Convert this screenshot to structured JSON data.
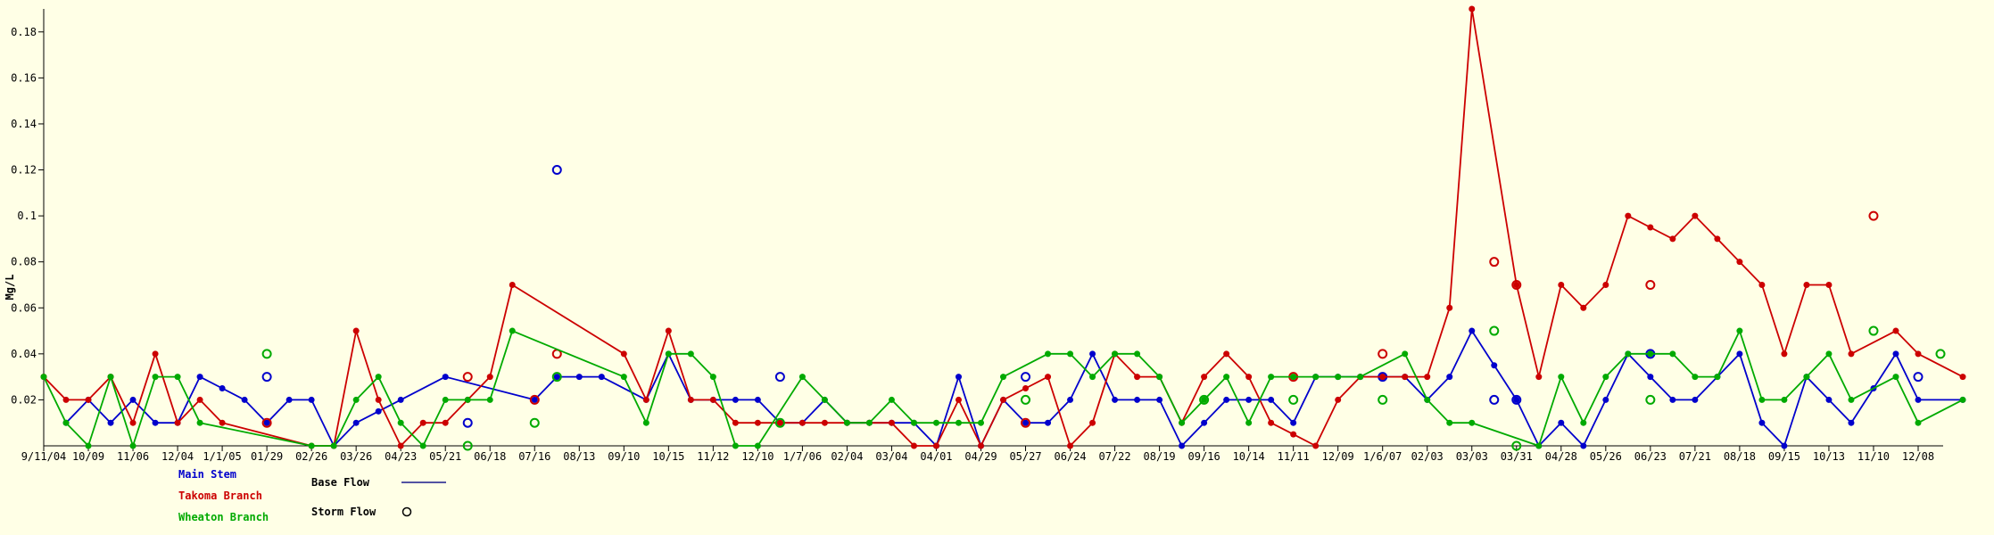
{
  "chart_data": {
    "type": "line",
    "ylabel": "Mg/L",
    "ylim": [
      0,
      0.19
    ],
    "yticks": [
      "0.02",
      "0.04",
      "0.06",
      "0.08",
      "0.1",
      "0.12",
      "0.14",
      "0.16",
      "0.18"
    ],
    "ytick_values": [
      0.02,
      0.04,
      0.06,
      0.08,
      0.1,
      0.12,
      0.14,
      0.16,
      0.18
    ],
    "xlim": [
      0,
      85
    ],
    "xtick_labels": [
      "9/11/04",
      "10/09",
      "11/06",
      "12/04",
      "1/1/05",
      "01/29",
      "02/26",
      "03/26",
      "04/23",
      "05/21",
      "06/18",
      "07/16",
      "08/13",
      "09/10",
      "10/15",
      "11/12",
      "12/10",
      "1/7/06",
      "02/04",
      "03/04",
      "04/01",
      "04/29",
      "05/27",
      "06/24",
      "07/22",
      "08/19",
      "09/16",
      "10/14",
      "11/11",
      "12/09",
      "1/6/07",
      "02/03",
      "03/03",
      "03/31",
      "04/28",
      "05/26",
      "06/23",
      "07/21",
      "08/18",
      "09/15",
      "10/13",
      "11/10",
      "12/08"
    ],
    "series": [
      {
        "name": "Main Stem",
        "color": "#0000cc",
        "base": [
          [
            1,
            0.01
          ],
          [
            2,
            0.02
          ],
          [
            3,
            0.01
          ],
          [
            4,
            0.02
          ],
          [
            5,
            0.01
          ],
          [
            6,
            0.01
          ],
          [
            7,
            0.03
          ],
          [
            8,
            0.025
          ],
          [
            9,
            0.02
          ],
          [
            10,
            0.01
          ],
          [
            11,
            0.02
          ],
          [
            12,
            0.02
          ],
          [
            13,
            0
          ],
          [
            14,
            0.01
          ],
          [
            15,
            0.015
          ],
          [
            16,
            0.02
          ],
          [
            18,
            0.03
          ],
          [
            22,
            0.02
          ],
          [
            23,
            0.03
          ],
          [
            24,
            0.03
          ],
          [
            25,
            0.03
          ],
          [
            27,
            0.02
          ],
          [
            28,
            0.04
          ],
          [
            29,
            0.02
          ],
          [
            30,
            0.02
          ],
          [
            31,
            0.02
          ],
          [
            32,
            0.02
          ],
          [
            33,
            0.01
          ],
          [
            34,
            0.01
          ],
          [
            35,
            0.02
          ],
          [
            36,
            0.01
          ],
          [
            37,
            0.01
          ],
          [
            38,
            0.01
          ],
          [
            39,
            0.01
          ],
          [
            40,
            0
          ],
          [
            41,
            0.03
          ],
          [
            42,
            0
          ],
          [
            43,
            0.02
          ],
          [
            44,
            0.01
          ],
          [
            45,
            0.01
          ],
          [
            46,
            0.02
          ],
          [
            47,
            0.04
          ],
          [
            48,
            0.02
          ],
          [
            49,
            0.02
          ],
          [
            50,
            0.02
          ],
          [
            51,
            0
          ],
          [
            52,
            0.01
          ],
          [
            53,
            0.02
          ],
          [
            54,
            0.02
          ],
          [
            55,
            0.02
          ],
          [
            56,
            0.01
          ],
          [
            57,
            0.03
          ],
          [
            58,
            0.03
          ],
          [
            59,
            0.03
          ],
          [
            60,
            0.03
          ],
          [
            61,
            0.03
          ],
          [
            62,
            0.02
          ],
          [
            63,
            0.03
          ],
          [
            64,
            0.05
          ],
          [
            65,
            0.035
          ],
          [
            66,
            0.02
          ],
          [
            67,
            0
          ],
          [
            68,
            0.01
          ],
          [
            69,
            0
          ],
          [
            70,
            0.02
          ],
          [
            71,
            0.04
          ],
          [
            72,
            0.03
          ],
          [
            73,
            0.02
          ],
          [
            74,
            0.02
          ],
          [
            75,
            0.03
          ],
          [
            76,
            0.04
          ],
          [
            77,
            0.01
          ],
          [
            78,
            0
          ],
          [
            79,
            0.03
          ],
          [
            80,
            0.02
          ],
          [
            81,
            0.01
          ],
          [
            82,
            0.025
          ],
          [
            83,
            0.04
          ],
          [
            84,
            0.02
          ],
          [
            86,
            0.02
          ]
        ],
        "storm": [
          [
            10,
            0.03
          ],
          [
            19,
            0.01
          ],
          [
            23,
            0.12
          ],
          [
            33,
            0.03
          ],
          [
            44,
            0.03
          ],
          [
            60,
            0.03
          ],
          [
            65,
            0.02
          ],
          [
            66,
            0.02
          ],
          [
            72,
            0.04
          ],
          [
            84,
            0.03
          ]
        ]
      },
      {
        "name": "Takoma Branch",
        "color": "#cc0000",
        "base": [
          [
            0,
            0.03
          ],
          [
            1,
            0.02
          ],
          [
            2,
            0.02
          ],
          [
            3,
            0.03
          ],
          [
            4,
            0.01
          ],
          [
            5,
            0.04
          ],
          [
            6,
            0.01
          ],
          [
            7,
            0.02
          ],
          [
            8,
            0.01
          ],
          [
            12,
            0
          ],
          [
            13,
            0
          ],
          [
            14,
            0.05
          ],
          [
            15,
            0.02
          ],
          [
            16,
            0
          ],
          [
            17,
            0.01
          ],
          [
            18,
            0.01
          ],
          [
            19,
            0.02
          ],
          [
            20,
            0.03
          ],
          [
            21,
            0.07
          ],
          [
            26,
            0.04
          ],
          [
            27,
            0.02
          ],
          [
            28,
            0.05
          ],
          [
            29,
            0.02
          ],
          [
            30,
            0.02
          ],
          [
            31,
            0.01
          ],
          [
            32,
            0.01
          ],
          [
            33,
            0.01
          ],
          [
            34,
            0.01
          ],
          [
            35,
            0.01
          ],
          [
            36,
            0.01
          ],
          [
            37,
            0.01
          ],
          [
            38,
            0.01
          ],
          [
            39,
            0
          ],
          [
            40,
            0
          ],
          [
            41,
            0.02
          ],
          [
            42,
            0
          ],
          [
            43,
            0.02
          ],
          [
            44,
            0.025
          ],
          [
            45,
            0.03
          ],
          [
            46,
            0
          ],
          [
            47,
            0.01
          ],
          [
            48,
            0.04
          ],
          [
            49,
            0.03
          ],
          [
            50,
            0.03
          ],
          [
            51,
            0.01
          ],
          [
            52,
            0.03
          ],
          [
            53,
            0.04
          ],
          [
            54,
            0.03
          ],
          [
            55,
            0.01
          ],
          [
            56,
            0.005
          ],
          [
            57,
            0
          ],
          [
            58,
            0.02
          ],
          [
            59,
            0.03
          ],
          [
            60,
            0.03
          ],
          [
            61,
            0.03
          ],
          [
            62,
            0.03
          ],
          [
            63,
            0.06
          ],
          [
            64,
            0.19
          ],
          [
            66,
            0.07
          ],
          [
            67,
            0.03
          ],
          [
            68,
            0.07
          ],
          [
            69,
            0.06
          ],
          [
            70,
            0.07
          ],
          [
            71,
            0.1
          ],
          [
            72,
            0.095
          ],
          [
            73,
            0.09
          ],
          [
            74,
            0.1
          ],
          [
            75,
            0.09
          ],
          [
            76,
            0.08
          ],
          [
            77,
            0.07
          ],
          [
            78,
            0.04
          ],
          [
            79,
            0.07
          ],
          [
            80,
            0.07
          ],
          [
            81,
            0.04
          ],
          [
            83,
            0.05
          ],
          [
            84,
            0.04
          ],
          [
            86,
            0.03
          ]
        ],
        "storm": [
          [
            10,
            0.01
          ],
          [
            19,
            0.03
          ],
          [
            22,
            0.02
          ],
          [
            23,
            0.04
          ],
          [
            44,
            0.01
          ],
          [
            56,
            0.03
          ],
          [
            60,
            0.04
          ],
          [
            65,
            0.08
          ],
          [
            66,
            0.07
          ],
          [
            72,
            0.07
          ],
          [
            82,
            0.1
          ]
        ]
      },
      {
        "name": "Wheaton Branch",
        "color": "#00aa00",
        "base": [
          [
            0,
            0.03
          ],
          [
            1,
            0.01
          ],
          [
            2,
            0
          ],
          [
            3,
            0.03
          ],
          [
            4,
            0
          ],
          [
            5,
            0.03
          ],
          [
            6,
            0.03
          ],
          [
            7,
            0.01
          ],
          [
            12,
            0
          ],
          [
            13,
            0
          ],
          [
            14,
            0.02
          ],
          [
            15,
            0.03
          ],
          [
            16,
            0.01
          ],
          [
            17,
            0
          ],
          [
            18,
            0.02
          ],
          [
            19,
            0.02
          ],
          [
            20,
            0.02
          ],
          [
            21,
            0.05
          ],
          [
            26,
            0.03
          ],
          [
            27,
            0.01
          ],
          [
            28,
            0.04
          ],
          [
            29,
            0.04
          ],
          [
            30,
            0.03
          ],
          [
            31,
            0
          ],
          [
            32,
            0
          ],
          [
            34,
            0.03
          ],
          [
            35,
            0.02
          ],
          [
            36,
            0.01
          ],
          [
            37,
            0.01
          ],
          [
            38,
            0.02
          ],
          [
            39,
            0.01
          ],
          [
            40,
            0.01
          ],
          [
            41,
            0.01
          ],
          [
            42,
            0.01
          ],
          [
            43,
            0.03
          ],
          [
            45,
            0.04
          ],
          [
            46,
            0.04
          ],
          [
            47,
            0.03
          ],
          [
            48,
            0.04
          ],
          [
            49,
            0.04
          ],
          [
            50,
            0.03
          ],
          [
            51,
            0.01
          ],
          [
            52,
            0.02
          ],
          [
            53,
            0.03
          ],
          [
            54,
            0.01
          ],
          [
            55,
            0.03
          ],
          [
            56,
            0.03
          ],
          [
            57,
            0.03
          ],
          [
            58,
            0.03
          ],
          [
            59,
            0.03
          ],
          [
            61,
            0.04
          ],
          [
            62,
            0.02
          ],
          [
            63,
            0.01
          ],
          [
            64,
            0.01
          ],
          [
            67,
            0
          ],
          [
            68,
            0.03
          ],
          [
            69,
            0.01
          ],
          [
            70,
            0.03
          ],
          [
            71,
            0.04
          ],
          [
            72,
            0.04
          ],
          [
            73,
            0.04
          ],
          [
            74,
            0.03
          ],
          [
            75,
            0.03
          ],
          [
            76,
            0.05
          ],
          [
            77,
            0.02
          ],
          [
            78,
            0.02
          ],
          [
            79,
            0.03
          ],
          [
            80,
            0.04
          ],
          [
            81,
            0.02
          ],
          [
            83,
            0.03
          ],
          [
            84,
            0.01
          ],
          [
            86,
            0.02
          ]
        ],
        "storm": [
          [
            10,
            0.04
          ],
          [
            19,
            0
          ],
          [
            22,
            0.01
          ],
          [
            23,
            0.03
          ],
          [
            33,
            0.01
          ],
          [
            44,
            0.02
          ],
          [
            52,
            0.02
          ],
          [
            56,
            0.02
          ],
          [
            60,
            0.02
          ],
          [
            65,
            0.05
          ],
          [
            66,
            0
          ],
          [
            72,
            0.02
          ],
          [
            82,
            0.05
          ],
          [
            85,
            0.04
          ]
        ]
      }
    ],
    "legend": {
      "series_position": "bottom-left",
      "base_flow_label": "Base Flow",
      "storm_flow_label": "Storm Flow"
    }
  }
}
